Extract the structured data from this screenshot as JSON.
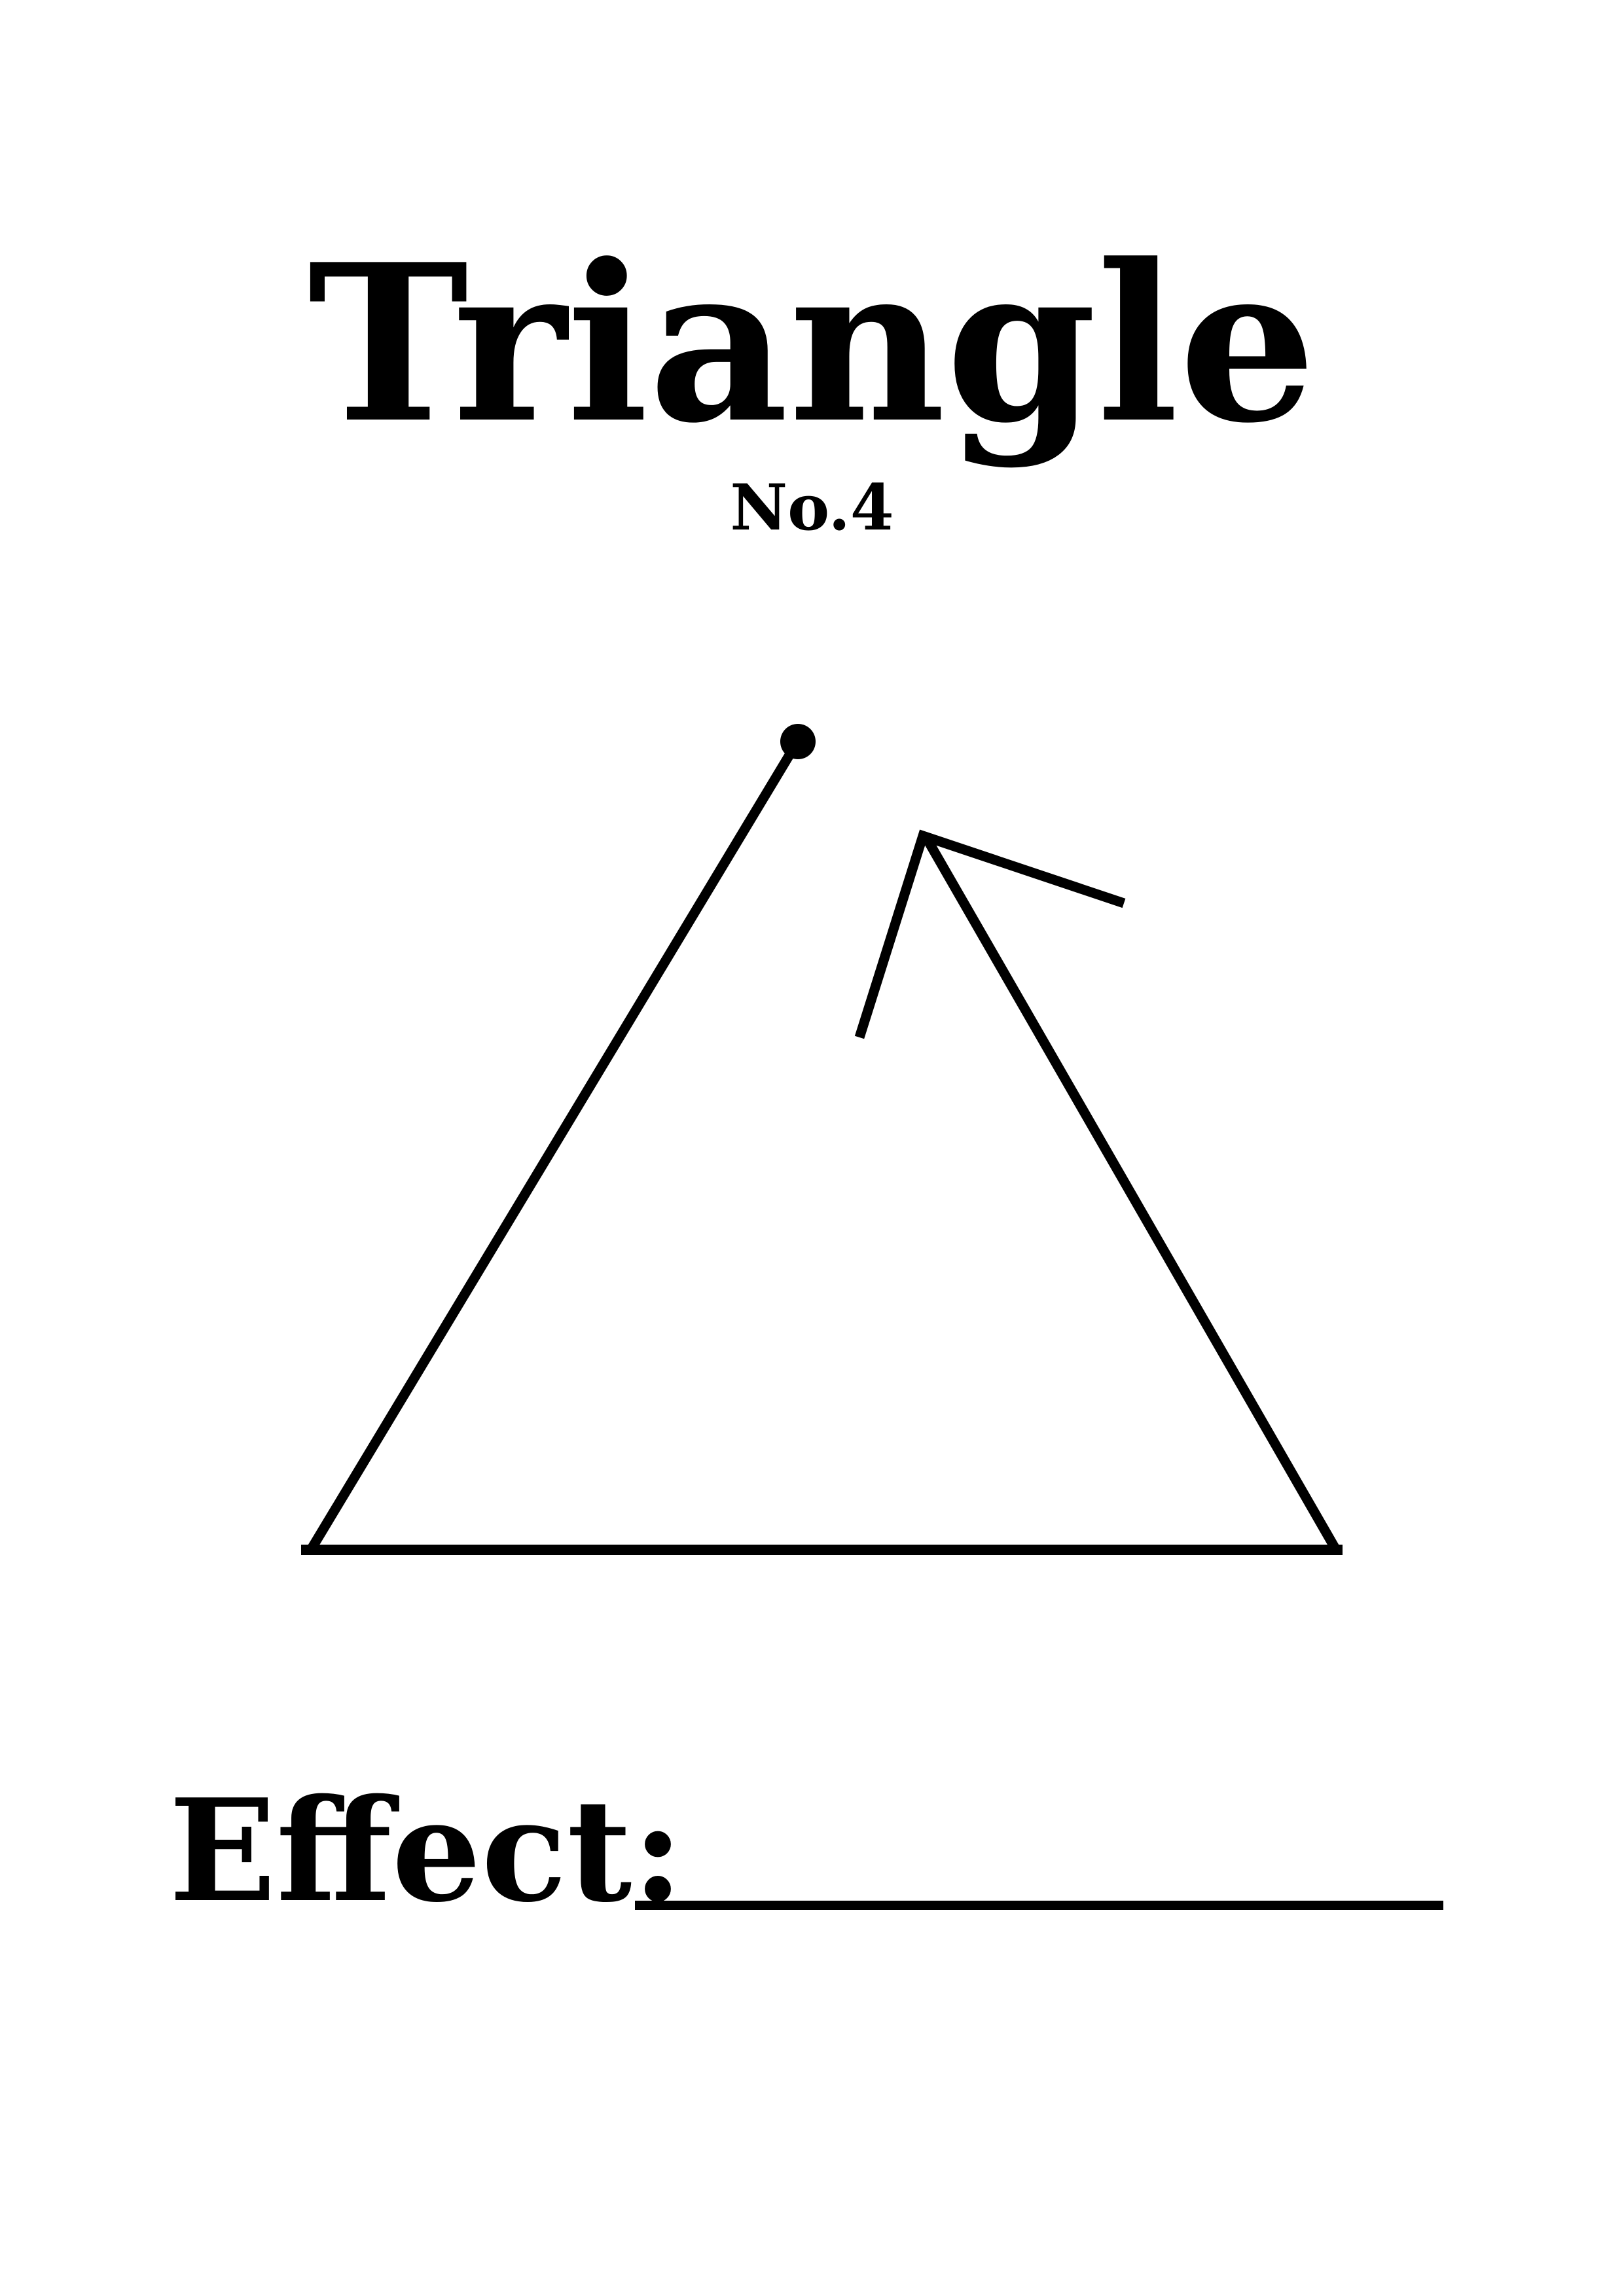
{
  "title": "Triangle",
  "subtitle": "No.4",
  "effect": {
    "label": "Effect:",
    "blank_value": ""
  },
  "colors": {
    "ink": "#000000",
    "paper": "#ffffff"
  },
  "symbol": {
    "description_icon": "broken-triangle-with-arrowhead-and-dot"
  }
}
